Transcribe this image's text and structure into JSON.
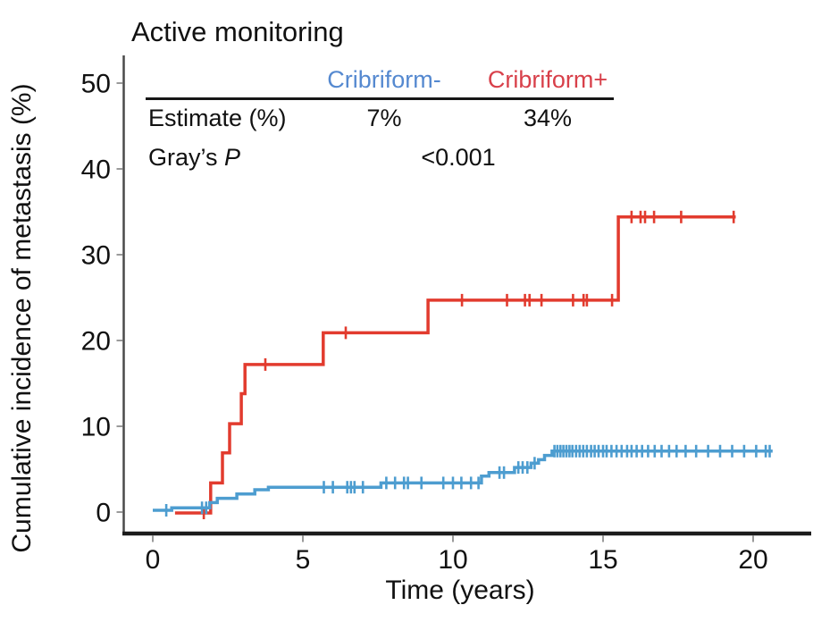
{
  "title": "Active monitoring",
  "table": {
    "col_headers": [
      {
        "label": "Cribriform-",
        "color": "#5589D0"
      },
      {
        "label": "Cribriform+",
        "color": "#D8404A"
      }
    ],
    "rows": [
      {
        "label": "Estimate (%)",
        "col1": "7%",
        "col2": "34%"
      },
      {
        "label_prefix": "Gray’s ",
        "label_italic": "P",
        "value": "<0.001"
      }
    ]
  },
  "chart_data": {
    "type": "line",
    "subtype": "cumulative-incidence-step-curves",
    "title": "Active monitoring",
    "xlabel": "Time (years)",
    "ylabel": "Cumulative incidence of metastasis (%)",
    "xlim": [
      0,
      20.8
    ],
    "ylim": [
      0,
      50
    ],
    "xticks": [
      0,
      5,
      10,
      15,
      20
    ],
    "yticks": [
      0,
      10,
      20,
      30,
      40,
      50
    ],
    "grid": false,
    "legend_position": "table-top",
    "series": [
      {
        "name": "Cribriform-",
        "color": "#4D9DD0",
        "final_estimate_pct": 7,
        "points": [
          [
            0,
            0
          ],
          [
            0.63,
            0.5
          ],
          [
            1.9,
            1.1
          ],
          [
            2.15,
            1.6
          ],
          [
            2.8,
            2.1
          ],
          [
            3.4,
            2.6
          ],
          [
            3.85,
            2.9
          ],
          [
            7.6,
            3.4
          ],
          [
            10.95,
            4.2
          ],
          [
            11.2,
            4.6
          ],
          [
            12.05,
            5.2
          ],
          [
            12.6,
            5.7
          ],
          [
            12.85,
            6.1
          ],
          [
            13.05,
            6.6
          ],
          [
            13.3,
            7.1
          ]
        ],
        "end_time": 20.65,
        "censor_times": [
          0.45,
          1.64,
          1.78,
          5.7,
          6.0,
          6.48,
          6.6,
          6.72,
          7.0,
          7.78,
          8.07,
          8.37,
          8.5,
          8.95,
          9.68,
          10.0,
          10.28,
          10.6,
          10.85,
          11.55,
          11.7,
          12.18,
          12.32,
          12.48,
          12.72,
          13.38,
          13.48,
          13.58,
          13.68,
          13.78,
          13.88,
          13.98,
          14.1,
          14.22,
          14.34,
          14.46,
          14.6,
          14.72,
          14.85,
          15.0,
          15.12,
          15.28,
          15.45,
          15.62,
          15.8,
          15.95,
          16.12,
          16.3,
          16.5,
          16.72,
          16.95,
          17.2,
          17.45,
          17.75,
          18.1,
          18.5,
          18.9,
          19.3,
          19.7,
          20.1,
          20.42,
          20.55
        ]
      },
      {
        "name": "Cribriform+",
        "color": "#E23B2E",
        "final_estimate_pct": 34,
        "points": [
          [
            0.74,
            0
          ],
          [
            1.93,
            3.4
          ],
          [
            2.32,
            6.9
          ],
          [
            2.56,
            10.3
          ],
          [
            2.95,
            13.8
          ],
          [
            3.07,
            17.2
          ],
          [
            5.68,
            20.9
          ],
          [
            9.17,
            24.7
          ],
          [
            15.51,
            34.4
          ]
        ],
        "end_time": 19.42,
        "censor_times": [
          1.7,
          3.75,
          6.43,
          10.3,
          11.8,
          12.4,
          12.55,
          12.95,
          14.0,
          14.35,
          14.46,
          15.3,
          15.95,
          16.25,
          16.4,
          16.7,
          17.6,
          19.35
        ]
      }
    ],
    "stats": {
      "estimate_label": "Estimate (%)",
      "grays_p_label": "Gray’s P",
      "grays_p_value": "<0.001"
    }
  }
}
